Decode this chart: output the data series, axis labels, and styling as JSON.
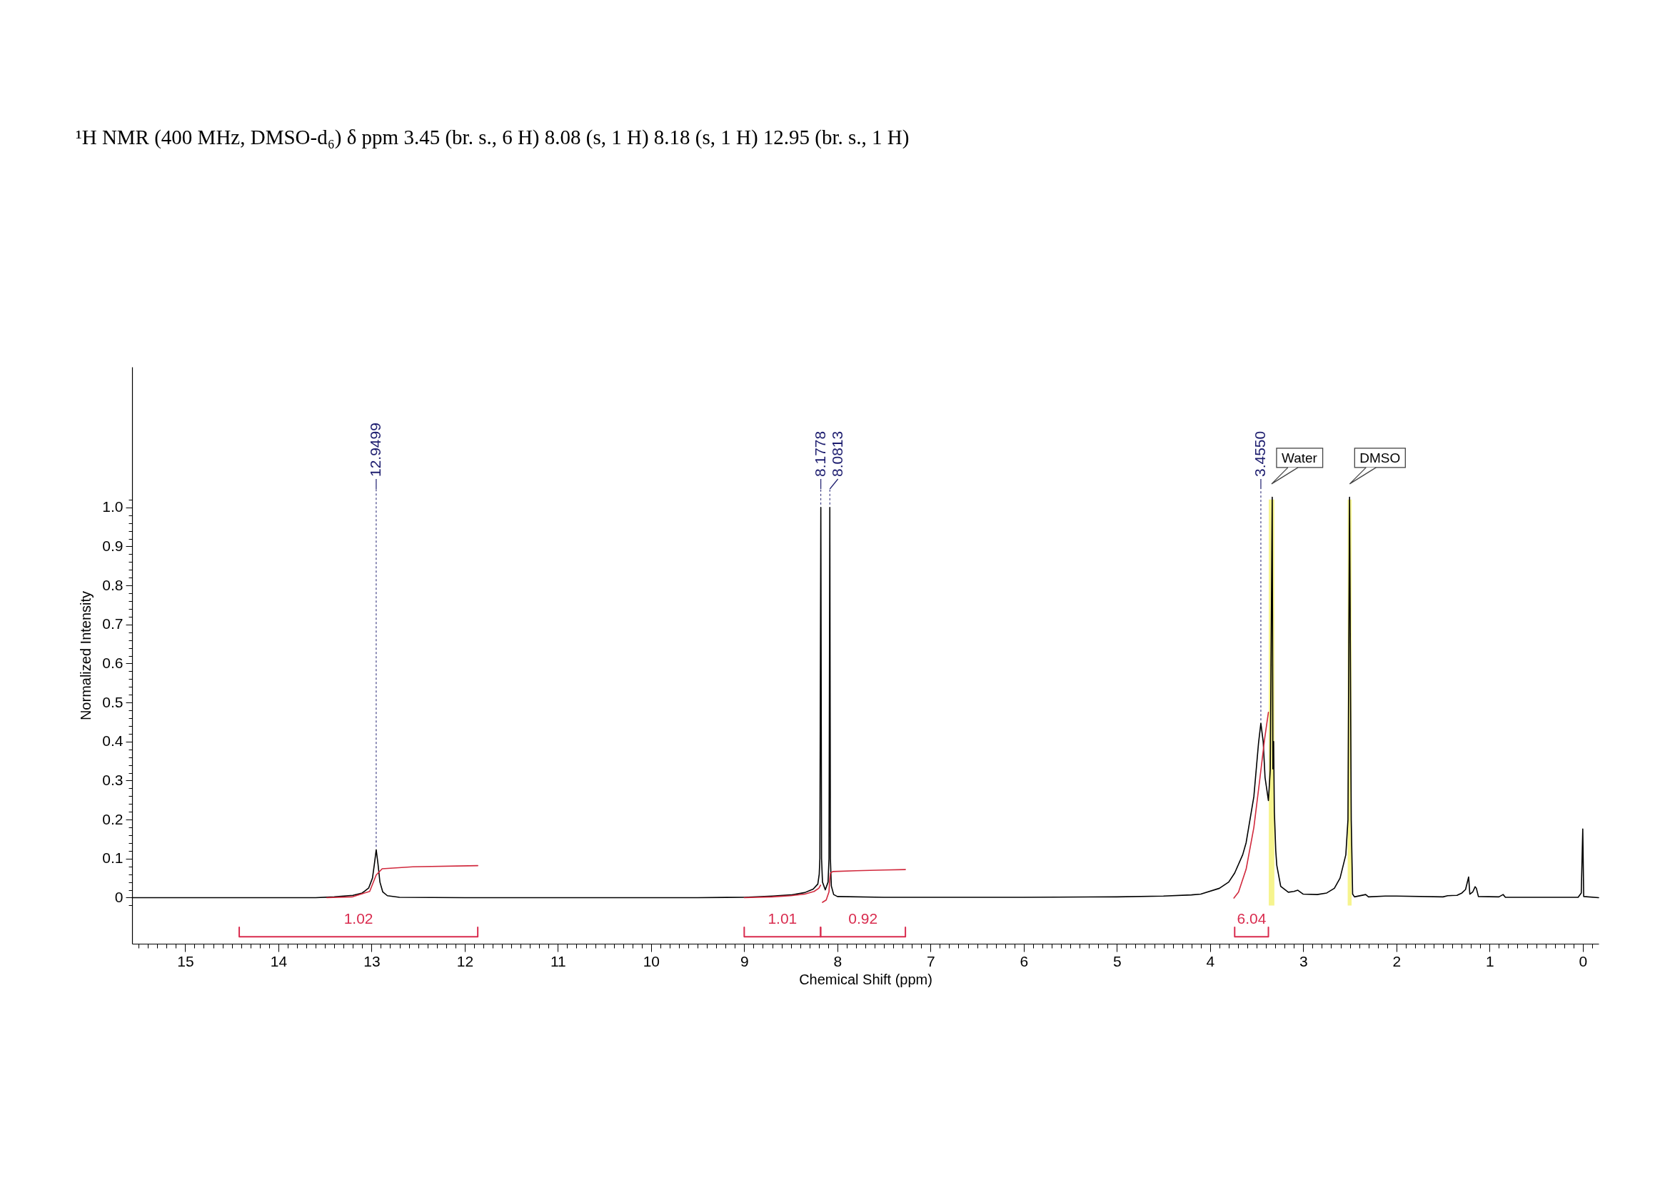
{
  "chart_data": {
    "type": "line",
    "title": "¹H NMR (400 MHz, DMSO-d₆) δ ppm 3.45 (br. s., 6 H) 8.08 (s, 1 H) 8.18 (s, 1 H) 12.95 (br. s., 1 H)",
    "xlabel": "Chemical Shift (ppm)",
    "ylabel": "Normalized Intensity",
    "xlim": [
      15.57,
      -0.17
    ],
    "ylim": [
      -0.118,
      1.36
    ],
    "xticks": [
      {
        "value": 15.5,
        "label": null
      },
      {
        "value": 15.4,
        "label": null
      },
      {
        "value": 15.3,
        "label": null
      },
      {
        "value": 15.2,
        "label": null
      },
      {
        "value": 15.1,
        "label": null
      },
      15,
      {
        "value": 14.9,
        "label": null
      },
      {
        "value": 14.8,
        "label": null
      },
      {
        "value": 14.7,
        "label": null
      },
      {
        "value": 14.6,
        "label": null
      },
      {
        "value": 14.5,
        "label": null
      },
      {
        "value": 14.4,
        "label": null
      },
      {
        "value": 14.3,
        "label": null
      },
      {
        "value": 14.2,
        "label": null
      },
      {
        "value": 14.1,
        "label": null
      },
      14,
      {
        "value": 13.9,
        "label": null
      },
      {
        "value": 13.8,
        "label": null
      },
      {
        "value": 13.7,
        "label": null
      },
      {
        "value": 13.6,
        "label": null
      },
      {
        "value": 13.5,
        "label": null
      },
      {
        "value": 13.4,
        "label": null
      },
      {
        "value": 13.3,
        "label": null
      },
      {
        "value": 13.2,
        "label": null
      },
      {
        "value": 13.1,
        "label": null
      },
      13,
      {
        "value": 12.9,
        "label": null
      },
      {
        "value": 12.8,
        "label": null
      },
      {
        "value": 12.7,
        "label": null
      },
      {
        "value": 12.6,
        "label": null
      },
      {
        "value": 12.5,
        "label": null
      },
      {
        "value": 12.4,
        "label": null
      },
      {
        "value": 12.3,
        "label": null
      },
      {
        "value": 12.2,
        "label": null
      },
      {
        "value": 12.1,
        "label": null
      },
      12,
      {
        "value": 11.9,
        "label": null
      },
      {
        "value": 11.8,
        "label": null
      },
      {
        "value": 11.7,
        "label": null
      },
      {
        "value": 11.6,
        "label": null
      },
      {
        "value": 11.5,
        "label": null
      },
      {
        "value": 11.4,
        "label": null
      },
      {
        "value": 11.3,
        "label": null
      },
      {
        "value": 11.2,
        "label": null
      },
      {
        "value": 11.1,
        "label": null
      },
      11,
      {
        "value": 10.9,
        "label": null
      },
      {
        "value": 10.8,
        "label": null
      },
      {
        "value": 10.7,
        "label": null
      },
      {
        "value": 10.6,
        "label": null
      },
      {
        "value": 10.5,
        "label": null
      },
      {
        "value": 10.4,
        "label": null
      },
      {
        "value": 10.3,
        "label": null
      },
      {
        "value": 10.2,
        "label": null
      },
      {
        "value": 10.1,
        "label": null
      },
      10,
      {
        "value": 9.9,
        "label": null
      },
      {
        "value": 9.8,
        "label": null
      },
      {
        "value": 9.7,
        "label": null
      },
      {
        "value": 9.6,
        "label": null
      },
      {
        "value": 9.5,
        "label": null
      },
      {
        "value": 9.4,
        "label": null
      },
      {
        "value": 9.3,
        "label": null
      },
      {
        "value": 9.2,
        "label": null
      },
      {
        "value": 9.1,
        "label": null
      },
      9,
      {
        "value": 8.9,
        "label": null
      },
      {
        "value": 8.8,
        "label": null
      },
      {
        "value": 8.7,
        "label": null
      },
      {
        "value": 8.6,
        "label": null
      },
      {
        "value": 8.5,
        "label": null
      },
      {
        "value": 8.4,
        "label": null
      },
      {
        "value": 8.3,
        "label": null
      },
      {
        "value": 8.2,
        "label": null
      },
      {
        "value": 8.1,
        "label": null
      },
      8,
      {
        "value": 7.9,
        "label": null
      },
      {
        "value": 7.8,
        "label": null
      },
      {
        "value": 7.7,
        "label": null
      },
      {
        "value": 7.6,
        "label": null
      },
      {
        "value": 7.5,
        "label": null
      },
      {
        "value": 7.4,
        "label": null
      },
      {
        "value": 7.3,
        "label": null
      },
      {
        "value": 7.2,
        "label": null
      },
      {
        "value": 7.1,
        "label": null
      },
      7,
      {
        "value": 6.9,
        "label": null
      },
      {
        "value": 6.8,
        "label": null
      },
      {
        "value": 6.7,
        "label": null
      },
      {
        "value": 6.6,
        "label": null
      },
      {
        "value": 6.5,
        "label": null
      },
      {
        "value": 6.4,
        "label": null
      },
      {
        "value": 6.3,
        "label": null
      },
      {
        "value": 6.2,
        "label": null
      },
      {
        "value": 6.1,
        "label": null
      },
      6,
      {
        "value": 5.9,
        "label": null
      },
      {
        "value": 5.8,
        "label": null
      },
      {
        "value": 5.7,
        "label": null
      },
      {
        "value": 5.6,
        "label": null
      },
      {
        "value": 5.5,
        "label": null
      },
      {
        "value": 5.4,
        "label": null
      },
      {
        "value": 5.3,
        "label": null
      },
      {
        "value": 5.2,
        "label": null
      },
      {
        "value": 5.1,
        "label": null
      },
      5,
      {
        "value": 4.9,
        "label": null
      },
      {
        "value": 4.8,
        "label": null
      },
      {
        "value": 4.7,
        "label": null
      },
      {
        "value": 4.6,
        "label": null
      },
      {
        "value": 4.5,
        "label": null
      },
      {
        "value": 4.4,
        "label": null
      },
      {
        "value": 4.3,
        "label": null
      },
      {
        "value": 4.2,
        "label": null
      },
      {
        "value": 4.1,
        "label": null
      },
      4,
      {
        "value": 3.9,
        "label": null
      },
      {
        "value": 3.8,
        "label": null
      },
      {
        "value": 3.7,
        "label": null
      },
      {
        "value": 3.6,
        "label": null
      },
      {
        "value": 3.5,
        "label": null
      },
      {
        "value": 3.4,
        "label": null
      },
      {
        "value": 3.3,
        "label": null
      },
      {
        "value": 3.2,
        "label": null
      },
      {
        "value": 3.1,
        "label": null
      },
      3,
      {
        "value": 2.9,
        "label": null
      },
      {
        "value": 2.8,
        "label": null
      },
      {
        "value": 2.7,
        "label": null
      },
      {
        "value": 2.6,
        "label": null
      },
      {
        "value": 2.5,
        "label": null
      },
      {
        "value": 2.4,
        "label": null
      },
      {
        "value": 2.3,
        "label": null
      },
      {
        "value": 2.2,
        "label": null
      },
      {
        "value": 2.1,
        "label": null
      },
      2,
      {
        "value": 1.9,
        "label": null
      },
      {
        "value": 1.8,
        "label": null
      },
      {
        "value": 1.7,
        "label": null
      },
      {
        "value": 1.6,
        "label": null
      },
      {
        "value": 1.5,
        "label": null
      },
      {
        "value": 1.4,
        "label": null
      },
      {
        "value": 1.3,
        "label": null
      },
      {
        "value": 1.2,
        "label": null
      },
      {
        "value": 1.1,
        "label": null
      },
      1,
      {
        "value": 0.9,
        "label": null
      },
      {
        "value": 0.8,
        "label": null
      },
      {
        "value": 0.7,
        "label": null
      },
      {
        "value": 0.6,
        "label": null
      },
      {
        "value": 0.5,
        "label": null
      },
      {
        "value": 0.4,
        "label": null
      },
      {
        "value": 0.3,
        "label": null
      },
      {
        "value": 0.2,
        "label": null
      },
      {
        "value": 0.1,
        "label": null
      },
      0,
      {
        "value": -0.1,
        "label": null
      }
    ],
    "yticks": [
      {
        "value": -0.02,
        "label": null
      },
      0,
      {
        "value": 0.02,
        "label": null
      },
      {
        "value": 0.04,
        "label": null
      },
      {
        "value": 0.06,
        "label": null
      },
      {
        "value": 0.08,
        "label": null
      },
      0.1,
      {
        "value": 0.12,
        "label": null
      },
      {
        "value": 0.14,
        "label": null
      },
      {
        "value": 0.16,
        "label": null
      },
      {
        "value": 0.18,
        "label": null
      },
      0.2,
      {
        "value": 0.22,
        "label": null
      },
      {
        "value": 0.24,
        "label": null
      },
      {
        "value": 0.26,
        "label": null
      },
      {
        "value": 0.28,
        "label": null
      },
      0.3,
      {
        "value": 0.32,
        "label": null
      },
      {
        "value": 0.34,
        "label": null
      },
      {
        "value": 0.36,
        "label": null
      },
      {
        "value": 0.38,
        "label": null
      },
      0.4,
      {
        "value": 0.42,
        "label": null
      },
      {
        "value": 0.44,
        "label": null
      },
      {
        "value": 0.46,
        "label": null
      },
      {
        "value": 0.48,
        "label": null
      },
      0.5,
      {
        "value": 0.52,
        "label": null
      },
      {
        "value": 0.54,
        "label": null
      },
      {
        "value": 0.56,
        "label": null
      },
      {
        "value": 0.58,
        "label": null
      },
      0.6,
      {
        "value": 0.62,
        "label": null
      },
      {
        "value": 0.64,
        "label": null
      },
      {
        "value": 0.66,
        "label": null
      },
      {
        "value": 0.68,
        "label": null
      },
      0.7,
      {
        "value": 0.72,
        "label": null
      },
      {
        "value": 0.74,
        "label": null
      },
      {
        "value": 0.76,
        "label": null
      },
      {
        "value": 0.78,
        "label": null
      },
      0.8,
      {
        "value": 0.82,
        "label": null
      },
      {
        "value": 0.84,
        "label": null
      },
      {
        "value": 0.86,
        "label": null
      },
      {
        "value": 0.88,
        "label": null
      },
      0.9,
      {
        "value": 0.92,
        "label": null
      },
      {
        "value": 0.94,
        "label": null
      },
      {
        "value": 0.96,
        "label": null
      },
      {
        "value": 0.98,
        "label": null
      },
      {
        "value": 1,
        "label": "1.0"
      },
      {
        "value": 1.02,
        "label": null
      }
    ],
    "series": [
      {
        "type": "line",
        "color": "#000000",
        "x": [
          15.57,
          13.6,
          13.4,
          13.2,
          13.1,
          13.03,
          12.99,
          12.97,
          12.9499,
          12.93,
          12.91,
          12.88,
          12.83,
          12.7,
          12.0,
          9.5,
          9.0,
          8.7,
          8.5,
          8.35,
          8.26,
          8.21,
          8.195,
          8.188,
          8.1778,
          8.17,
          8.16,
          8.13,
          8.1,
          8.09,
          8.0813,
          8.075,
          8.065,
          8.04,
          8.0,
          7.5,
          6.0,
          5.0,
          4.5,
          4.2,
          4.1,
          3.9,
          3.8,
          3.736,
          3.65,
          3.613,
          3.53,
          3.48,
          3.455,
          3.43,
          3.41,
          3.374,
          3.354,
          3.333,
          3.326,
          3.318,
          3.31,
          3.295,
          3.284,
          3.242,
          3.16,
          3.1,
          3.058,
          3.0,
          2.85,
          2.748,
          2.666,
          2.605,
          2.543,
          2.52,
          2.503,
          2.485,
          2.47,
          2.45,
          2.33,
          2.3,
          2.12,
          2.0,
          1.5,
          1.45,
          1.35,
          1.297,
          1.258,
          1.225,
          1.212,
          1.18,
          1.155,
          1.142,
          1.12,
          0.9,
          0.855,
          0.83,
          0.05,
          0.016,
          0.0,
          -0.01,
          -0.17
        ],
        "values": [
          0,
          0,
          0.002,
          0.006,
          0.012,
          0.025,
          0.05,
          0.085,
          0.123,
          0.085,
          0.04,
          0.015,
          0.005,
          0.001,
          0,
          0,
          0.001,
          0.004,
          0.007,
          0.013,
          0.022,
          0.035,
          0.06,
          0.1,
          1.0,
          0.1,
          0.04,
          0.02,
          0.04,
          0.1,
          1.0,
          0.1,
          0.03,
          0.008,
          0.003,
          0.001,
          0.001,
          0.002,
          0.004,
          0.007,
          0.009,
          0.024,
          0.04,
          0.063,
          0.11,
          0.141,
          0.259,
          0.396,
          0.447,
          0.4,
          0.308,
          0.249,
          0.328,
          1.026,
          0.33,
          0.4,
          0.22,
          0.12,
          0.083,
          0.029,
          0.014,
          0.016,
          0.019,
          0.009,
          0.008,
          0.012,
          0.024,
          0.05,
          0.11,
          0.2,
          1.026,
          0.2,
          0.009,
          0.002,
          0.008,
          0.002,
          0.004,
          0.004,
          0.002,
          0.005,
          0.006,
          0.012,
          0.021,
          0.053,
          0.009,
          0.015,
          0.028,
          0.024,
          0.003,
          0.002,
          0.008,
          0.001,
          0.001,
          0.012,
          0.176,
          0.003,
          0
        ]
      },
      {
        "type": "line",
        "color": "#d1293d",
        "x": [
          13.48,
          13.21,
          13.02,
          12.95,
          12.886,
          12.557,
          11.86
        ],
        "values": [
          0,
          0.002,
          0.016,
          0.058,
          0.074,
          0.079,
          0.082
        ]
      },
      {
        "type": "line",
        "color": "#d1293d",
        "x": [
          9.0,
          8.7,
          8.5,
          8.35,
          8.25,
          8.2,
          8.18
        ],
        "values": [
          0,
          0.002,
          0.005,
          0.009,
          0.016,
          0.024,
          0.032
        ]
      },
      {
        "type": "line",
        "color": "#d1293d",
        "x": [
          8.16,
          8.12,
          8.09,
          8.083,
          8.075,
          8.05,
          7.8,
          7.5,
          7.27
        ],
        "values": [
          -0.012,
          -0.006,
          0.015,
          0.045,
          0.063,
          0.067,
          0.069,
          0.071,
          0.072
        ]
      },
      {
        "type": "line",
        "color": "#d1293d",
        "x": [
          3.744,
          3.695,
          3.613,
          3.53,
          3.469,
          3.415,
          3.374
        ],
        "values": [
          -0.001,
          0.014,
          0.073,
          0.18,
          0.298,
          0.406,
          0.475
        ]
      },
      {
        "type": "line",
        "name": "1.02",
        "color": "#d92b4e",
        "x": [
          14.42,
          14.42,
          11.86,
          11.86
        ],
        "values": [
          -0.076,
          -0.1,
          -0.1,
          -0.076
        ]
      },
      {
        "type": "line",
        "name": "1.01",
        "color": "#d92b4e",
        "x": [
          9.0,
          9.0,
          8.18,
          8.18
        ],
        "values": [
          -0.076,
          -0.1,
          -0.1,
          -0.076
        ]
      },
      {
        "type": "line",
        "name": "0.92",
        "color": "#d92b4e",
        "x": [
          8.18,
          8.18,
          7.27,
          7.27
        ],
        "values": [
          -0.076,
          -0.1,
          -0.1,
          -0.076
        ]
      },
      {
        "type": "line",
        "name": "6.04",
        "color": "#d92b4e",
        "x": [
          3.736,
          3.736,
          3.374,
          3.374
        ],
        "values": [
          -0.076,
          -0.1,
          -0.1,
          -0.076
        ]
      }
    ],
    "bands": [
      {
        "axis": "x",
        "from": 3.37,
        "to": 3.31,
        "label": "Water",
        "color": "#f6f48e"
      },
      {
        "axis": "x",
        "from": 2.523,
        "to": 2.481,
        "label": "DMSO",
        "color": "#f6f48e"
      }
    ],
    "annotations": [
      {
        "text": "12.9499",
        "x": 12.9499,
        "y": 0.123
      },
      {
        "text": "8.1778",
        "x": 8.1778,
        "y": 1.0
      },
      {
        "text": "8.0813",
        "x": 8.0813,
        "y": 1.0
      },
      {
        "text": "3.4550",
        "x": 3.455,
        "y": 0.447
      }
    ]
  }
}
